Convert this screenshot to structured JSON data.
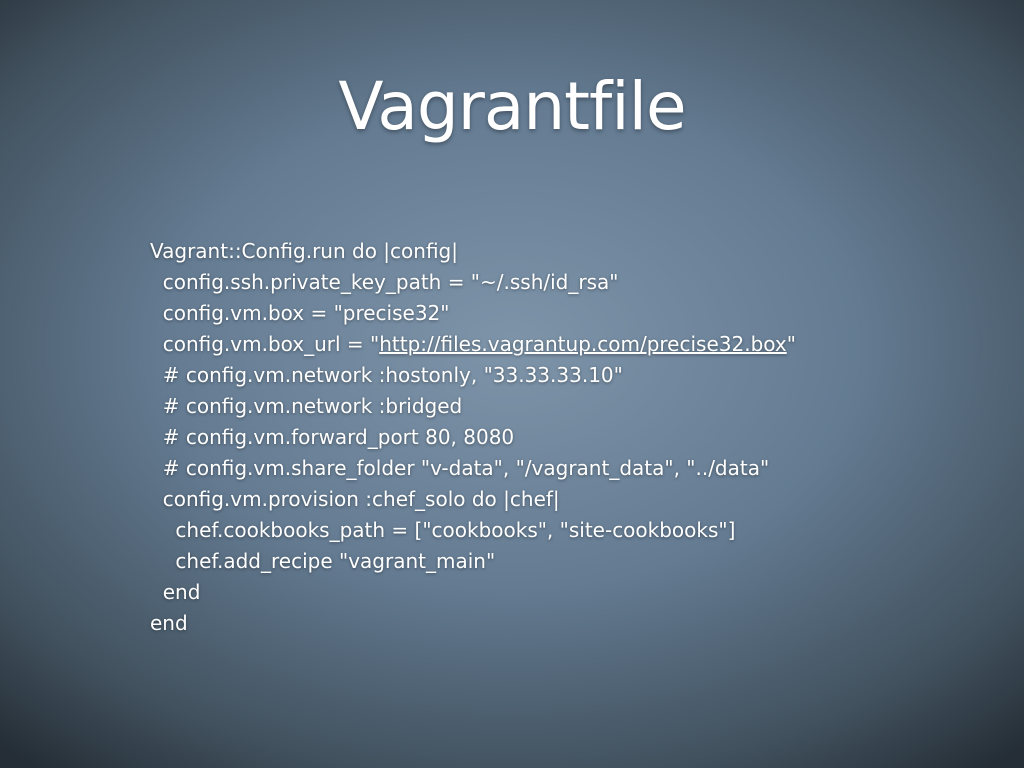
{
  "slide": {
    "title": "Vagrantfile",
    "code": {
      "lines": [
        "Vagrant::Config.run do |config|",
        "  config.ssh.private_key_path = \"~/.ssh/id_rsa\"",
        "  config.vm.box = \"precise32\"",
        {
          "before": "  config.vm.box_url = \"",
          "link": "http://files.vagrantup.com/precise32.box",
          "after": "\""
        },
        "  # config.vm.network :hostonly, \"33.33.33.10\"",
        "  # config.vm.network :bridged",
        "  # config.vm.forward_port 80, 8080",
        "  # config.vm.share_folder \"v-data\", \"/vagrant_data\", \"../data\"",
        "  config.vm.provision :chef_solo do |chef|",
        "    chef.cookbooks_path = [\"cookbooks\", \"site-cookbooks\"]",
        "    chef.add_recipe \"vagrant_main\"",
        "  end",
        "end"
      ]
    }
  }
}
